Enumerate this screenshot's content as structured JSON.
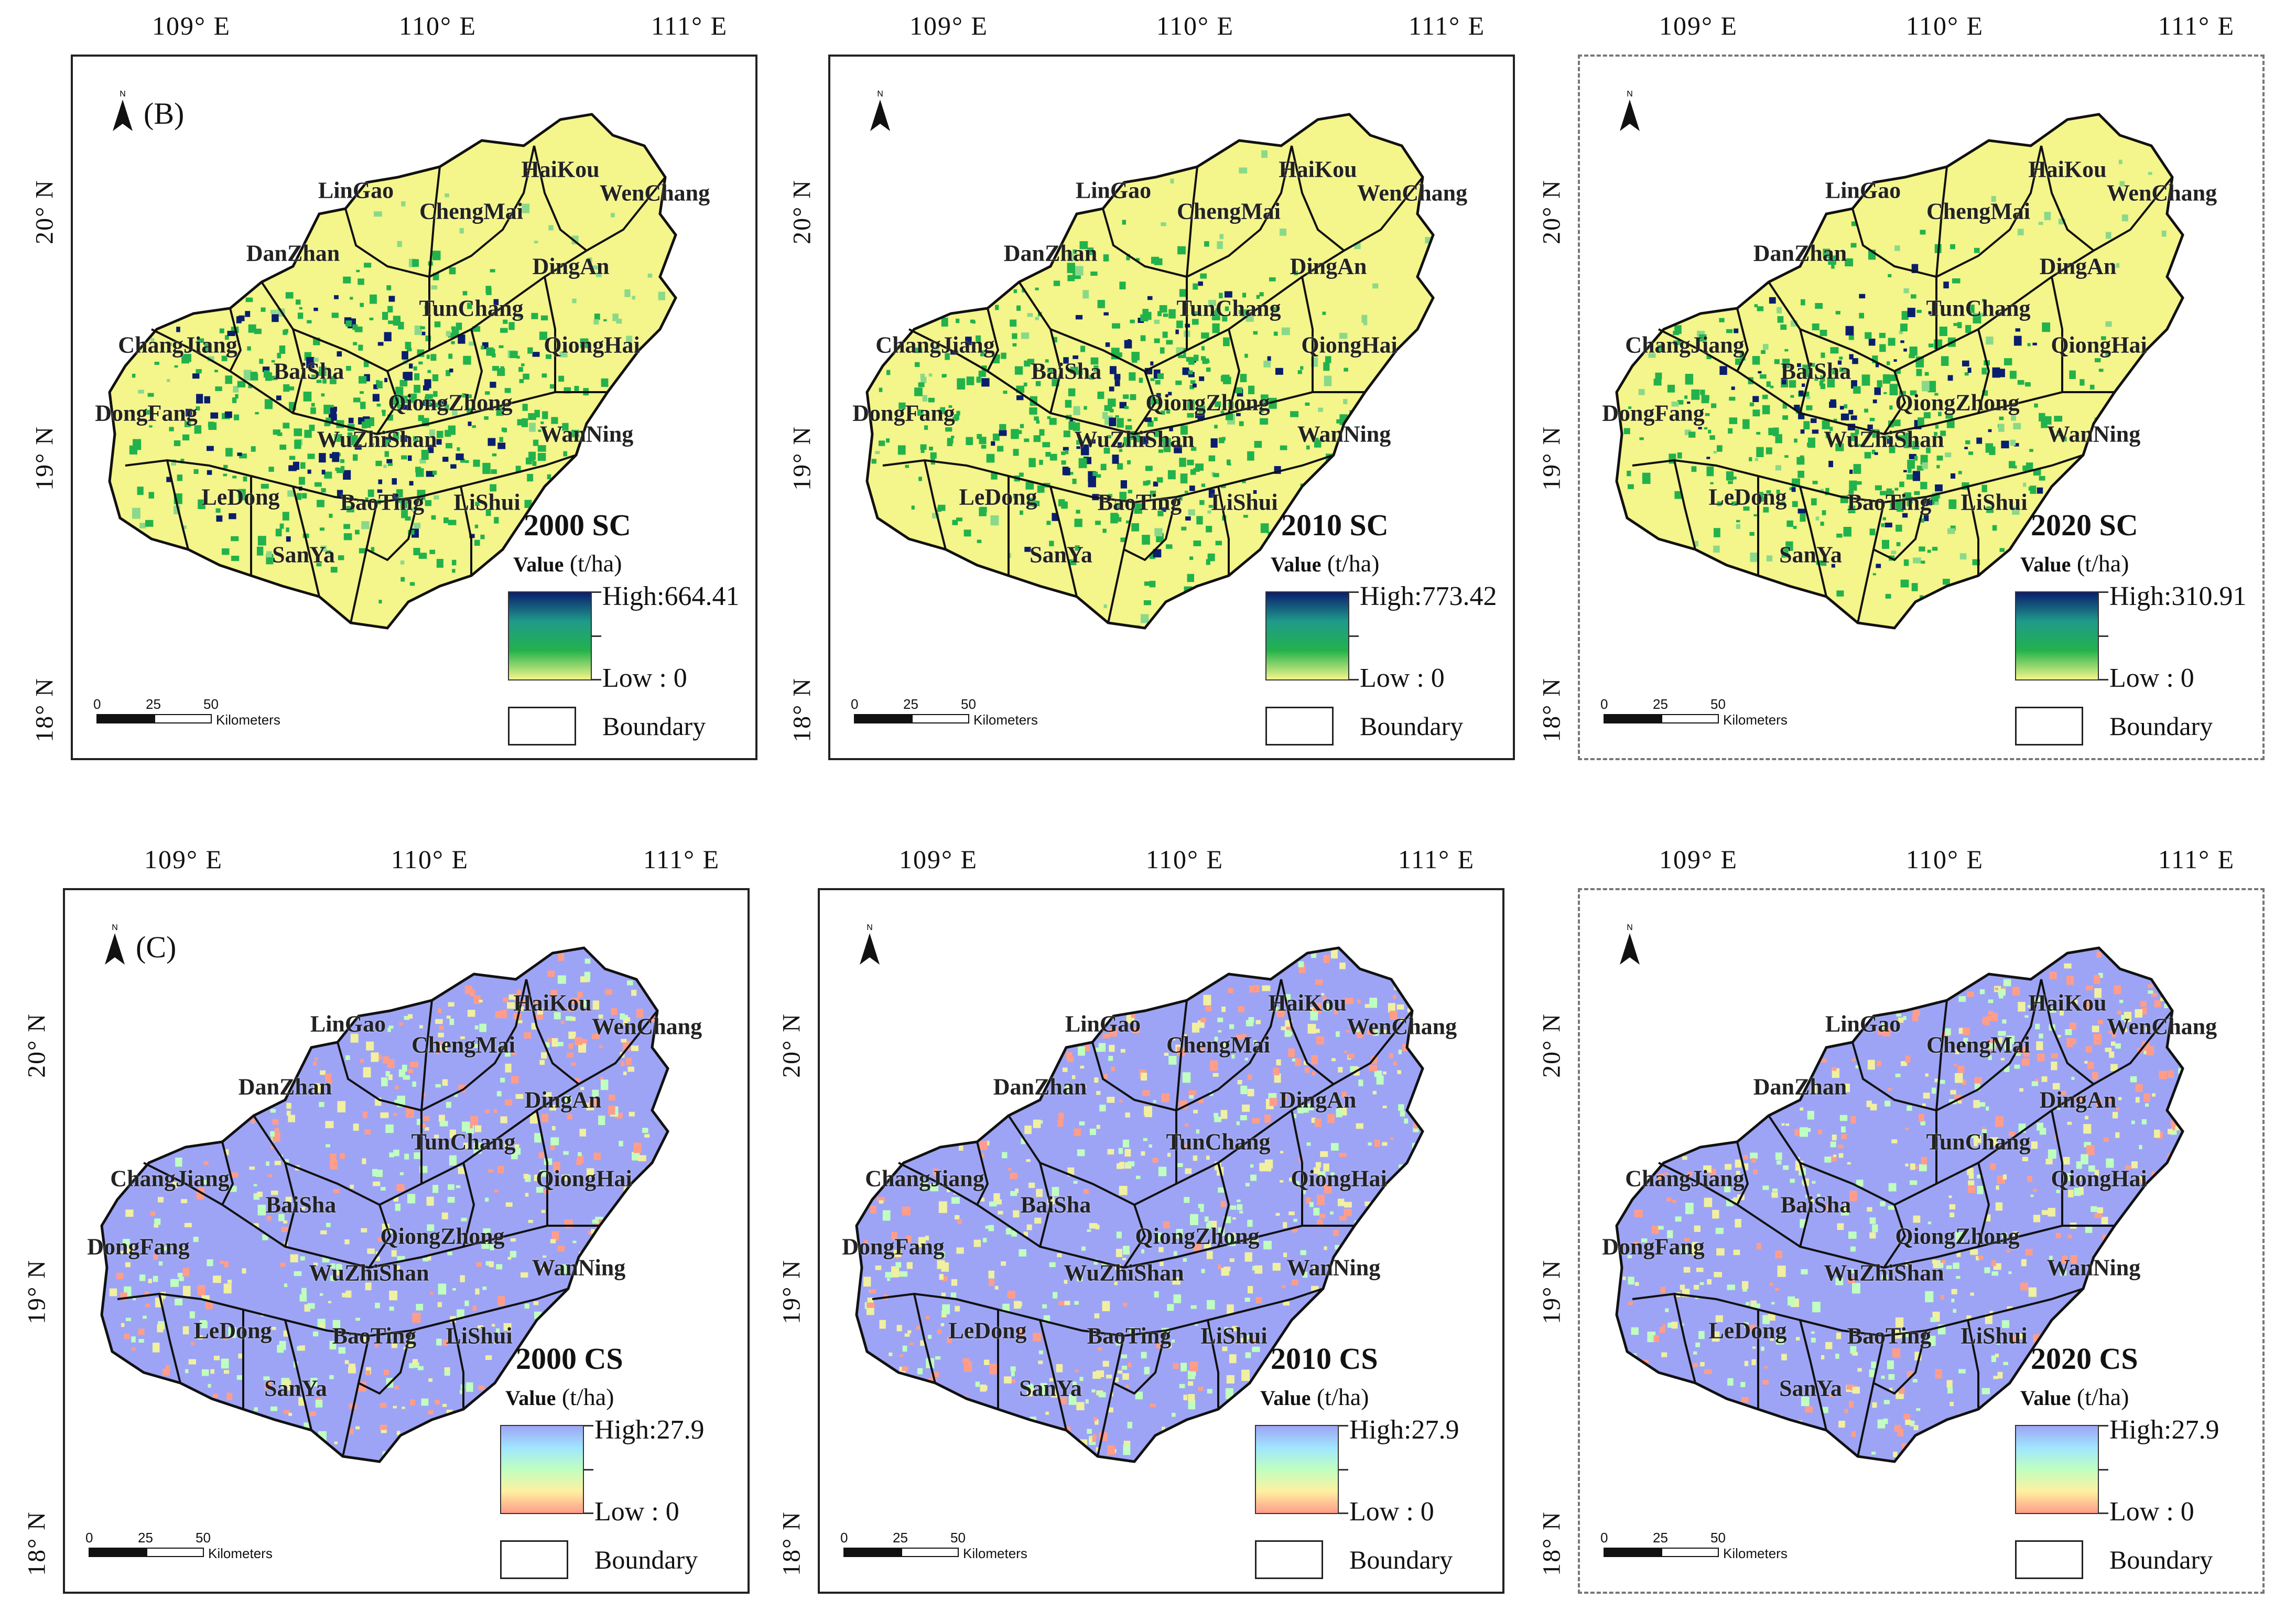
{
  "lon_labels": [
    "109° E",
    "110° E",
    "111° E"
  ],
  "lat_labels": [
    "20° N",
    "19° N",
    "18° N"
  ],
  "counties": [
    "LinGao",
    "HaiKou",
    "WenChang",
    "ChengMai",
    "DanZhan",
    "DingAn",
    "TunChang",
    "ChangJiang",
    "QiongHai",
    "BaiSha",
    "QiongZhong",
    "DongFang",
    "WanNing",
    "WuZhiShan",
    "LeDong",
    "BaoTing",
    "LiShui",
    "SanYa"
  ],
  "legend_common": {
    "value_label": "Value",
    "unit": "(t/ha)",
    "low": "Low : 0",
    "boundary": "Boundary"
  },
  "scale_bar": {
    "ticks": [
      "0",
      "25",
      "50"
    ],
    "unit": "Kilometers"
  },
  "north_letter": "N",
  "colors": {
    "sc_low": "#f4f58a",
    "sc_mid": "#22b24c",
    "sc_high": "#0a1e6e",
    "cs_low": "#ff9d8a",
    "cs_mid": "#bfffbf",
    "cs_high": "#9da4f5",
    "border": "#111111"
  },
  "panels": [
    {
      "id": "sc2000",
      "letter": "(B)",
      "title": "2000 SC",
      "high": "High:664.41",
      "kind": "sc",
      "dashed": false
    },
    {
      "id": "sc2010",
      "letter": "",
      "title": "2010 SC",
      "high": "High:773.42",
      "kind": "sc",
      "dashed": false
    },
    {
      "id": "sc2020",
      "letter": "",
      "title": "2020 SC",
      "high": "High:310.91",
      "kind": "sc",
      "dashed": true
    },
    {
      "id": "cs2000",
      "letter": "(C)",
      "title": "2000 CS",
      "high": "High:27.9",
      "kind": "cs",
      "dashed": false
    },
    {
      "id": "cs2010",
      "letter": "",
      "title": "2010 CS",
      "high": "High:27.9",
      "kind": "cs",
      "dashed": false
    },
    {
      "id": "cs2020",
      "letter": "",
      "title": "2020 CS",
      "high": "High:27.9",
      "kind": "cs",
      "dashed": true
    }
  ]
}
